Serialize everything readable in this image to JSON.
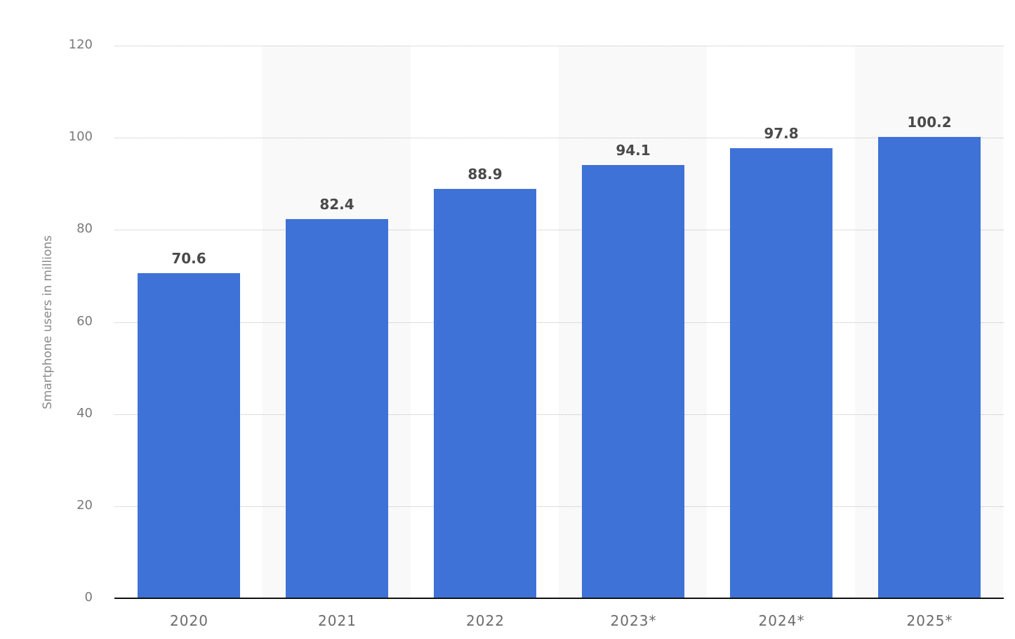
{
  "chart_data": {
    "type": "bar",
    "title": "",
    "xlabel": "",
    "ylabel": "Smartphone users in millions",
    "categories": [
      "2020",
      "2021",
      "2022",
      "2023*",
      "2024*",
      "2025*"
    ],
    "values": [
      70.6,
      82.4,
      88.9,
      94.1,
      97.8,
      100.2
    ],
    "value_labels": [
      "70.6",
      "82.4",
      "88.9",
      "94.1",
      "97.8",
      "100.2"
    ],
    "ylim": [
      0,
      120
    ],
    "yticks": [
      "0",
      "20",
      "40",
      "60",
      "80",
      "100",
      "120"
    ],
    "grid": true,
    "legend": null,
    "bar_color": "#3e72d7"
  }
}
